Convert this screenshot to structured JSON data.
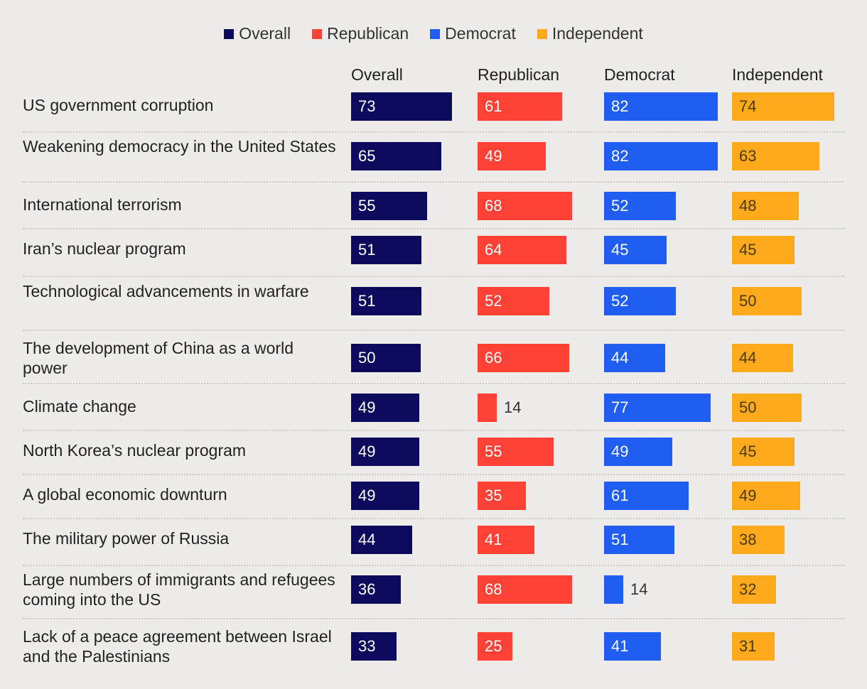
{
  "chart_data": {
    "type": "bar",
    "legend": [
      {
        "name": "Overall",
        "color": "#0b0a5c"
      },
      {
        "name": "Republican",
        "color": "#ff4136"
      },
      {
        "name": "Democrat",
        "color": "#1f5ef0"
      },
      {
        "name": "Independent",
        "color": "#ffaa1a"
      }
    ],
    "series": [
      {
        "name": "Overall",
        "color": "#0b0a5c",
        "label_color": "#ffffff",
        "values": [
          73,
          65,
          55,
          51,
          51,
          50,
          49,
          49,
          49,
          44,
          36,
          33
        ]
      },
      {
        "name": "Republican",
        "color": "#ff4136",
        "label_color": "#ffffff",
        "values": [
          61,
          49,
          68,
          64,
          52,
          66,
          14,
          55,
          35,
          41,
          68,
          25
        ]
      },
      {
        "name": "Democrat",
        "color": "#1f5ef0",
        "label_color": "#ffffff",
        "values": [
          82,
          82,
          52,
          45,
          52,
          44,
          77,
          49,
          61,
          51,
          14,
          41
        ]
      },
      {
        "name": "Independent",
        "color": "#ffaa1a",
        "label_color": "#4a3a10",
        "values": [
          74,
          63,
          48,
          45,
          50,
          44,
          50,
          45,
          49,
          38,
          32,
          31
        ]
      }
    ],
    "categories": [
      "US government corruption",
      "Weakening democracy in the United States",
      "International terrorism",
      "Iran’s nuclear program",
      "Technological advancements in warfare",
      "The development of China as a world power",
      "Climate change",
      "North Korea’s nuclear program",
      "A global economic downturn",
      "The military power of Russia",
      "Large numbers of immigrants and refugees coming into the US",
      "Lack of a peace agreement between Israel and the Palestinians"
    ]
  }
}
